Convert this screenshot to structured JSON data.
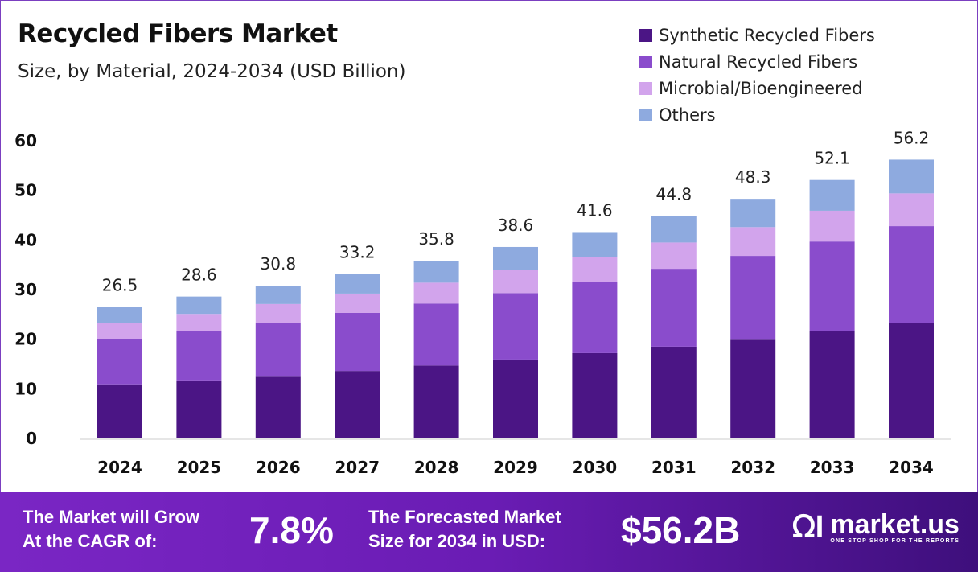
{
  "chart_data": {
    "type": "bar",
    "stacked": true,
    "title": "Recycled Fibers Market",
    "subtitle": "Size, by Material, 2024-2034 (USD Billion)",
    "categories": [
      "2024",
      "2025",
      "2026",
      "2027",
      "2028",
      "2029",
      "2030",
      "2031",
      "2032",
      "2033",
      "2034"
    ],
    "series": [
      {
        "name": "Synthetic Recycled Fibers",
        "color": "#4b1585",
        "values": [
          10.9,
          11.7,
          12.6,
          13.6,
          14.7,
          15.9,
          17.2,
          18.5,
          19.9,
          21.6,
          23.2
        ]
      },
      {
        "name": "Natural Recycled Fibers",
        "color": "#8a4ccc",
        "values": [
          9.2,
          10.0,
          10.7,
          11.7,
          12.5,
          13.4,
          14.4,
          15.7,
          16.9,
          18.1,
          19.6
        ]
      },
      {
        "name": "Microbial/Bioengineered",
        "color": "#d2a4ec",
        "values": [
          3.2,
          3.4,
          3.8,
          3.9,
          4.2,
          4.7,
          5.0,
          5.3,
          5.8,
          6.2,
          6.6
        ]
      },
      {
        "name": "Others",
        "color": "#8eaadf",
        "values": [
          3.2,
          3.5,
          3.7,
          4.0,
          4.4,
          4.6,
          5.0,
          5.3,
          5.7,
          6.2,
          6.8
        ]
      }
    ],
    "totals": [
      "26.5",
      "28.6",
      "30.8",
      "33.2",
      "35.8",
      "38.6",
      "41.6",
      "44.8",
      "48.3",
      "52.1",
      "56.2"
    ],
    "yticks": [
      "0",
      "10",
      "20",
      "30",
      "40",
      "50",
      "60"
    ],
    "ylim": [
      0,
      60
    ],
    "grid": false,
    "legend": "top-right"
  },
  "footer": {
    "cagr_label": "The Market will Grow\nAt the CAGR of:",
    "cagr_value": "7.8%",
    "forecast_label": "The Forecasted Market\nSize for 2034 in USD:",
    "forecast_value": "$56.2B",
    "logo_name": "market.us",
    "logo_tagline": "ONE STOP SHOP FOR THE REPORTS"
  }
}
